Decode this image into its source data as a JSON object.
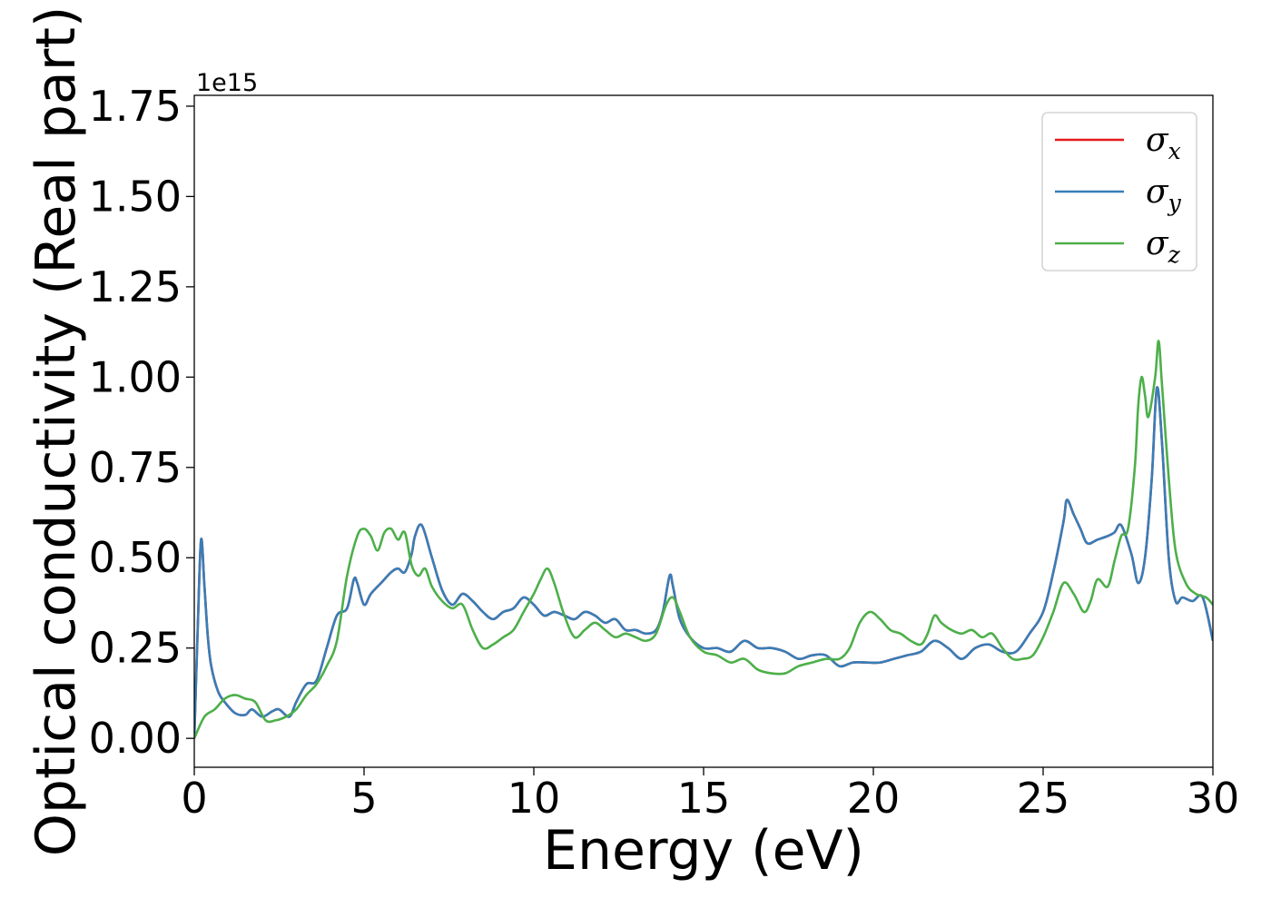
{
  "chart_data": {
    "type": "line",
    "xlabel": "Energy (eV)",
    "ylabel": "Optical conductivity (Real part)",
    "offset_text": "1e15",
    "xlim": [
      0,
      30
    ],
    "ylim": [
      -0.08,
      1.78
    ],
    "x_ticks": [
      0,
      5,
      10,
      15,
      20,
      25,
      30
    ],
    "x_tick_labels": [
      "0",
      "5",
      "10",
      "15",
      "20",
      "25",
      "30"
    ],
    "y_ticks": [
      0.0,
      0.25,
      0.5,
      0.75,
      1.0,
      1.25,
      1.5,
      1.75
    ],
    "y_tick_labels": [
      "0.00",
      "0.25",
      "0.50",
      "0.75",
      "1.00",
      "1.25",
      "1.50",
      "1.75"
    ],
    "grid": false,
    "legend_position": "top-right",
    "series": [
      {
        "name": "σx",
        "symbol": "σ",
        "subscript": "x",
        "color": "#e41a1c",
        "x": [
          0,
          0.1,
          0.2,
          0.3,
          0.4,
          0.5,
          0.7,
          0.9,
          1.2,
          1.5,
          1.7,
          2.0,
          2.3,
          2.5,
          2.8,
          3.0,
          3.3,
          3.6,
          3.9,
          4.2,
          4.5,
          4.7,
          4.8,
          5.0,
          5.2,
          5.5,
          5.8,
          6.0,
          6.2,
          6.4,
          6.5,
          6.7,
          7.0,
          7.3,
          7.6,
          7.9,
          8.2,
          8.5,
          8.8,
          9.1,
          9.4,
          9.7,
          10.0,
          10.3,
          10.6,
          10.9,
          11.2,
          11.5,
          11.8,
          12.1,
          12.4,
          12.7,
          13.0,
          13.3,
          13.6,
          13.8,
          14.0,
          14.1,
          14.3,
          14.6,
          15.0,
          15.4,
          15.8,
          16.2,
          16.6,
          17.0,
          17.4,
          17.8,
          18.2,
          18.6,
          19.0,
          19.4,
          19.8,
          20.2,
          20.6,
          21.0,
          21.4,
          21.8,
          22.2,
          22.6,
          23.0,
          23.4,
          23.8,
          24.2,
          24.6,
          25.0,
          25.3,
          25.6,
          25.7,
          25.9,
          26.1,
          26.3,
          26.6,
          26.9,
          27.1,
          27.3,
          27.6,
          27.8,
          28.0,
          28.2,
          28.35,
          28.5,
          28.7,
          28.9,
          29.1,
          29.4,
          29.7,
          30.0
        ],
        "y": [
          0.0,
          0.3,
          0.55,
          0.42,
          0.28,
          0.2,
          0.13,
          0.1,
          0.07,
          0.065,
          0.08,
          0.06,
          0.075,
          0.08,
          0.06,
          0.1,
          0.15,
          0.16,
          0.25,
          0.34,
          0.36,
          0.44,
          0.43,
          0.37,
          0.4,
          0.43,
          0.46,
          0.47,
          0.46,
          0.51,
          0.56,
          0.59,
          0.5,
          0.41,
          0.37,
          0.4,
          0.38,
          0.35,
          0.33,
          0.35,
          0.36,
          0.39,
          0.37,
          0.34,
          0.35,
          0.34,
          0.33,
          0.35,
          0.34,
          0.32,
          0.33,
          0.3,
          0.3,
          0.29,
          0.3,
          0.35,
          0.45,
          0.42,
          0.33,
          0.28,
          0.25,
          0.25,
          0.24,
          0.27,
          0.25,
          0.25,
          0.24,
          0.22,
          0.23,
          0.23,
          0.2,
          0.21,
          0.21,
          0.21,
          0.22,
          0.23,
          0.24,
          0.27,
          0.25,
          0.22,
          0.25,
          0.26,
          0.24,
          0.24,
          0.29,
          0.35,
          0.46,
          0.6,
          0.66,
          0.62,
          0.58,
          0.54,
          0.55,
          0.56,
          0.57,
          0.59,
          0.51,
          0.43,
          0.5,
          0.72,
          0.97,
          0.82,
          0.5,
          0.38,
          0.39,
          0.38,
          0.39,
          0.27
        ]
      },
      {
        "name": "σy",
        "symbol": "σ",
        "subscript": "y",
        "color": "#377eb8",
        "x": [
          0,
          0.1,
          0.2,
          0.3,
          0.4,
          0.5,
          0.7,
          0.9,
          1.2,
          1.5,
          1.7,
          2.0,
          2.3,
          2.5,
          2.8,
          3.0,
          3.3,
          3.6,
          3.9,
          4.2,
          4.5,
          4.7,
          4.8,
          5.0,
          5.2,
          5.5,
          5.8,
          6.0,
          6.2,
          6.4,
          6.5,
          6.7,
          7.0,
          7.3,
          7.6,
          7.9,
          8.2,
          8.5,
          8.8,
          9.1,
          9.4,
          9.7,
          10.0,
          10.3,
          10.6,
          10.9,
          11.2,
          11.5,
          11.8,
          12.1,
          12.4,
          12.7,
          13.0,
          13.3,
          13.6,
          13.8,
          14.0,
          14.1,
          14.3,
          14.6,
          15.0,
          15.4,
          15.8,
          16.2,
          16.6,
          17.0,
          17.4,
          17.8,
          18.2,
          18.6,
          19.0,
          19.4,
          19.8,
          20.2,
          20.6,
          21.0,
          21.4,
          21.8,
          22.2,
          22.6,
          23.0,
          23.4,
          23.8,
          24.2,
          24.6,
          25.0,
          25.3,
          25.6,
          25.7,
          25.9,
          26.1,
          26.3,
          26.6,
          26.9,
          27.1,
          27.3,
          27.6,
          27.8,
          28.0,
          28.2,
          28.35,
          28.5,
          28.7,
          28.9,
          29.1,
          29.4,
          29.7,
          30.0
        ],
        "y": [
          0.0,
          0.3,
          0.55,
          0.42,
          0.28,
          0.2,
          0.13,
          0.1,
          0.07,
          0.065,
          0.08,
          0.06,
          0.075,
          0.08,
          0.06,
          0.1,
          0.15,
          0.16,
          0.25,
          0.34,
          0.36,
          0.44,
          0.43,
          0.37,
          0.4,
          0.43,
          0.46,
          0.47,
          0.46,
          0.51,
          0.56,
          0.59,
          0.5,
          0.41,
          0.37,
          0.4,
          0.38,
          0.35,
          0.33,
          0.35,
          0.36,
          0.39,
          0.37,
          0.34,
          0.35,
          0.34,
          0.33,
          0.35,
          0.34,
          0.32,
          0.33,
          0.3,
          0.3,
          0.29,
          0.3,
          0.35,
          0.45,
          0.42,
          0.33,
          0.28,
          0.25,
          0.25,
          0.24,
          0.27,
          0.25,
          0.25,
          0.24,
          0.22,
          0.23,
          0.23,
          0.2,
          0.21,
          0.21,
          0.21,
          0.22,
          0.23,
          0.24,
          0.27,
          0.25,
          0.22,
          0.25,
          0.26,
          0.24,
          0.24,
          0.29,
          0.35,
          0.46,
          0.6,
          0.66,
          0.62,
          0.58,
          0.54,
          0.55,
          0.56,
          0.57,
          0.59,
          0.51,
          0.43,
          0.5,
          0.72,
          0.97,
          0.82,
          0.5,
          0.38,
          0.39,
          0.38,
          0.39,
          0.27
        ]
      },
      {
        "name": "σz",
        "symbol": "σ",
        "subscript": "z",
        "color": "#4daf4a",
        "x": [
          0,
          0.3,
          0.6,
          0.9,
          1.2,
          1.5,
          1.8,
          2.1,
          2.4,
          2.7,
          3.0,
          3.3,
          3.6,
          3.9,
          4.2,
          4.5,
          4.8,
          5.0,
          5.2,
          5.4,
          5.6,
          5.8,
          6.0,
          6.2,
          6.4,
          6.6,
          6.8,
          7.0,
          7.3,
          7.6,
          7.9,
          8.2,
          8.5,
          8.8,
          9.1,
          9.4,
          9.7,
          10.0,
          10.2,
          10.4,
          10.6,
          10.9,
          11.2,
          11.5,
          11.8,
          12.1,
          12.4,
          12.7,
          13.0,
          13.3,
          13.6,
          13.9,
          14.1,
          14.3,
          14.6,
          15.0,
          15.4,
          15.8,
          16.2,
          16.6,
          17.0,
          17.4,
          17.8,
          18.2,
          18.6,
          19.0,
          19.3,
          19.6,
          19.9,
          20.2,
          20.5,
          20.8,
          21.1,
          21.4,
          21.6,
          21.8,
          22.0,
          22.3,
          22.6,
          22.9,
          23.2,
          23.5,
          23.8,
          24.1,
          24.4,
          24.7,
          25.0,
          25.3,
          25.6,
          25.9,
          26.2,
          26.4,
          26.6,
          26.9,
          27.1,
          27.3,
          27.5,
          27.7,
          27.8,
          27.9,
          28.0,
          28.1,
          28.3,
          28.4,
          28.5,
          28.7,
          28.9,
          29.2,
          29.5,
          29.8,
          30.0
        ],
        "y": [
          0.0,
          0.06,
          0.08,
          0.11,
          0.12,
          0.11,
          0.1,
          0.05,
          0.05,
          0.06,
          0.08,
          0.12,
          0.15,
          0.2,
          0.27,
          0.45,
          0.56,
          0.58,
          0.56,
          0.52,
          0.57,
          0.58,
          0.55,
          0.57,
          0.48,
          0.45,
          0.47,
          0.42,
          0.38,
          0.36,
          0.37,
          0.3,
          0.25,
          0.26,
          0.28,
          0.3,
          0.35,
          0.4,
          0.44,
          0.47,
          0.43,
          0.34,
          0.28,
          0.3,
          0.32,
          0.3,
          0.28,
          0.29,
          0.28,
          0.27,
          0.29,
          0.37,
          0.39,
          0.35,
          0.28,
          0.24,
          0.23,
          0.21,
          0.22,
          0.19,
          0.18,
          0.18,
          0.2,
          0.21,
          0.22,
          0.22,
          0.25,
          0.32,
          0.35,
          0.33,
          0.3,
          0.29,
          0.27,
          0.26,
          0.29,
          0.34,
          0.32,
          0.3,
          0.29,
          0.3,
          0.28,
          0.29,
          0.25,
          0.22,
          0.22,
          0.23,
          0.28,
          0.35,
          0.43,
          0.4,
          0.35,
          0.38,
          0.44,
          0.42,
          0.49,
          0.56,
          0.58,
          0.75,
          0.92,
          1.0,
          0.95,
          0.89,
          1.0,
          1.1,
          0.98,
          0.72,
          0.52,
          0.43,
          0.4,
          0.39,
          0.37
        ]
      }
    ]
  }
}
